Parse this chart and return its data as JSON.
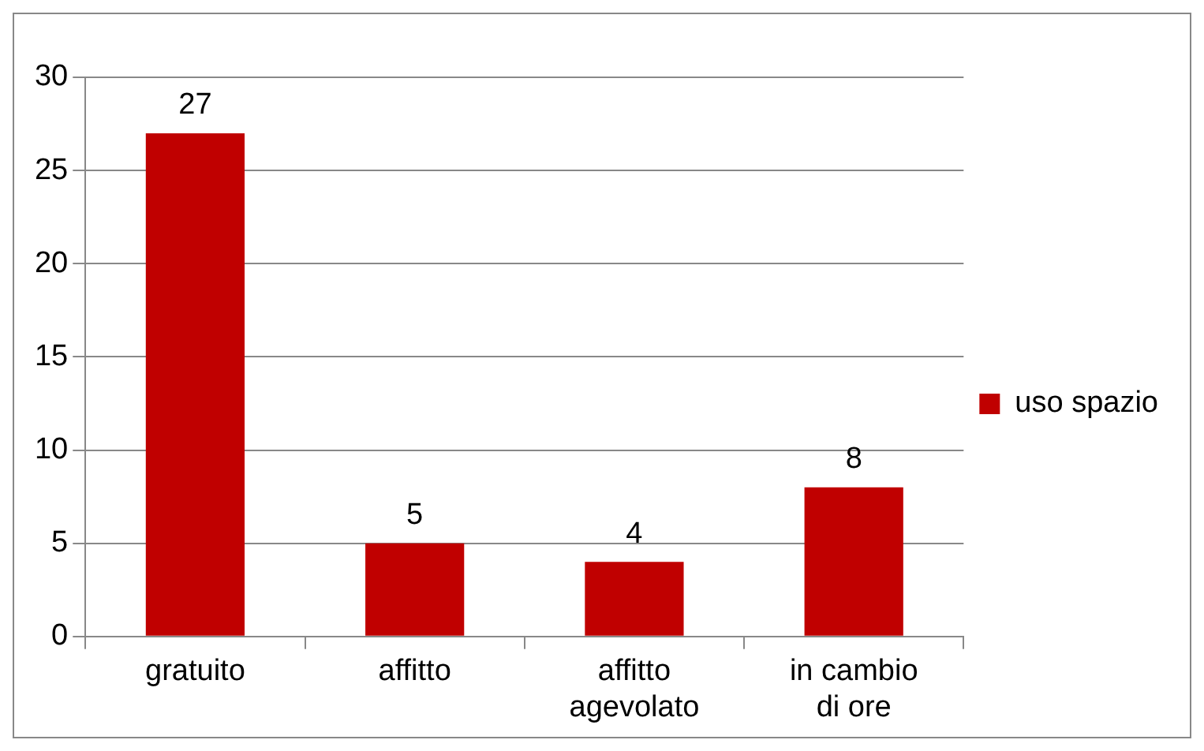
{
  "chart_data": {
    "type": "bar",
    "categories": [
      "gratuito",
      "affitto",
      "affitto agevolato",
      "in cambio di ore"
    ],
    "series": [
      {
        "name": "uso spazio",
        "color": "#c00000",
        "values": [
          27,
          5,
          4,
          8
        ]
      }
    ],
    "ylim": [
      0,
      30
    ],
    "yticks": [
      0,
      5,
      10,
      15,
      20,
      25,
      30
    ],
    "grid": "y",
    "legend": "right",
    "data_labels": true
  }
}
